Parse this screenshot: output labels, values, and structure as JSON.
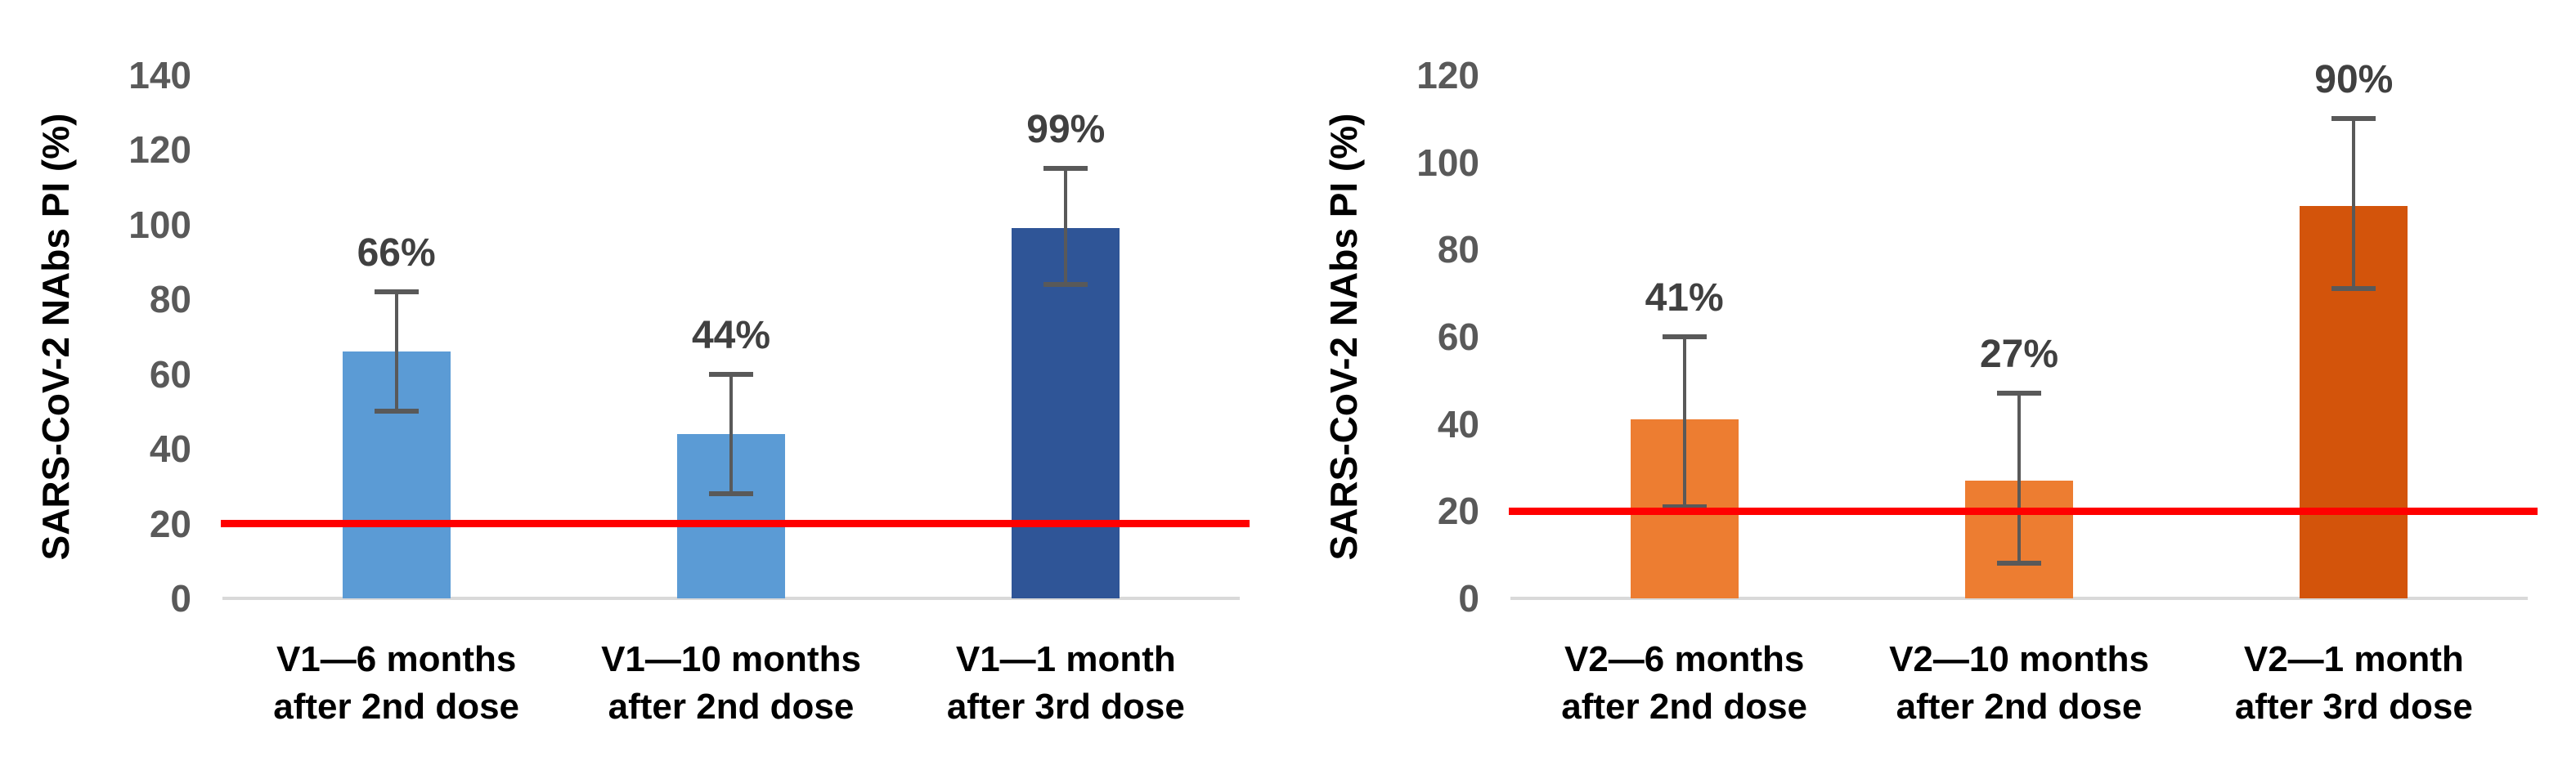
{
  "figure": {
    "background": "#ffffff",
    "tick_color": "#595959",
    "value_label_color": "#404040",
    "error_bar_color": "#595959",
    "baseline_color": "#d9d9d9"
  },
  "chart_data": [
    {
      "type": "bar",
      "title": "",
      "ylabel": "SARS-CoV-2 NAbs PI (%)",
      "xlabel": "",
      "ylim": [
        0,
        140
      ],
      "ytick_step": 20,
      "ytick_labels": [
        "0",
        "20",
        "40",
        "60",
        "80",
        "100",
        "120",
        "140"
      ],
      "grid": "off",
      "legend": "none",
      "threshold_line": {
        "value": 20,
        "color": "#ff0000"
      },
      "categories": [
        "V1—6 months after 2nd dose",
        "V1—10 months after 2nd dose",
        "V1—1 month after 3rd dose"
      ],
      "bars": [
        {
          "label_line1": "V1—6 months",
          "label_line2": "after 2nd dose",
          "value": 66,
          "display": "66%",
          "error_low": 50,
          "error_high": 82,
          "color": "#5b9bd5"
        },
        {
          "label_line1": "V1—10 months",
          "label_line2": "after 2nd dose",
          "value": 44,
          "display": "44%",
          "error_low": 28,
          "error_high": 60,
          "color": "#5b9bd5"
        },
        {
          "label_line1": "V1—1 month",
          "label_line2": "after 3rd dose",
          "value": 99,
          "display": "99%",
          "error_low": 84,
          "error_high": 115,
          "color": "#2f5597"
        }
      ]
    },
    {
      "type": "bar",
      "title": "",
      "ylabel": "SARS-CoV-2 NAbs PI (%)",
      "xlabel": "",
      "ylim": [
        0,
        120
      ],
      "ytick_step": 20,
      "ytick_labels": [
        "0",
        "20",
        "40",
        "60",
        "80",
        "100",
        "120"
      ],
      "grid": "off",
      "legend": "none",
      "threshold_line": {
        "value": 20,
        "color": "#ff0000"
      },
      "categories": [
        "V2—6 months after 2nd dose",
        "V2—10 months after 2nd dose",
        "V2—1 month after 3rd dose"
      ],
      "bars": [
        {
          "label_line1": "V2—6 months",
          "label_line2": "after 2nd dose",
          "value": 41,
          "display": "41%",
          "error_low": 21,
          "error_high": 60,
          "color": "#ed7d31"
        },
        {
          "label_line1": "V2—10 months",
          "label_line2": "after 2nd dose",
          "value": 27,
          "display": "27%",
          "error_low": 8,
          "error_high": 47,
          "color": "#ed7d31"
        },
        {
          "label_line1": "V2—1 month",
          "label_line2": "after 3rd dose",
          "value": 90,
          "display": "90%",
          "error_low": 71,
          "error_high": 110,
          "color": "#d3540b"
        }
      ]
    }
  ]
}
